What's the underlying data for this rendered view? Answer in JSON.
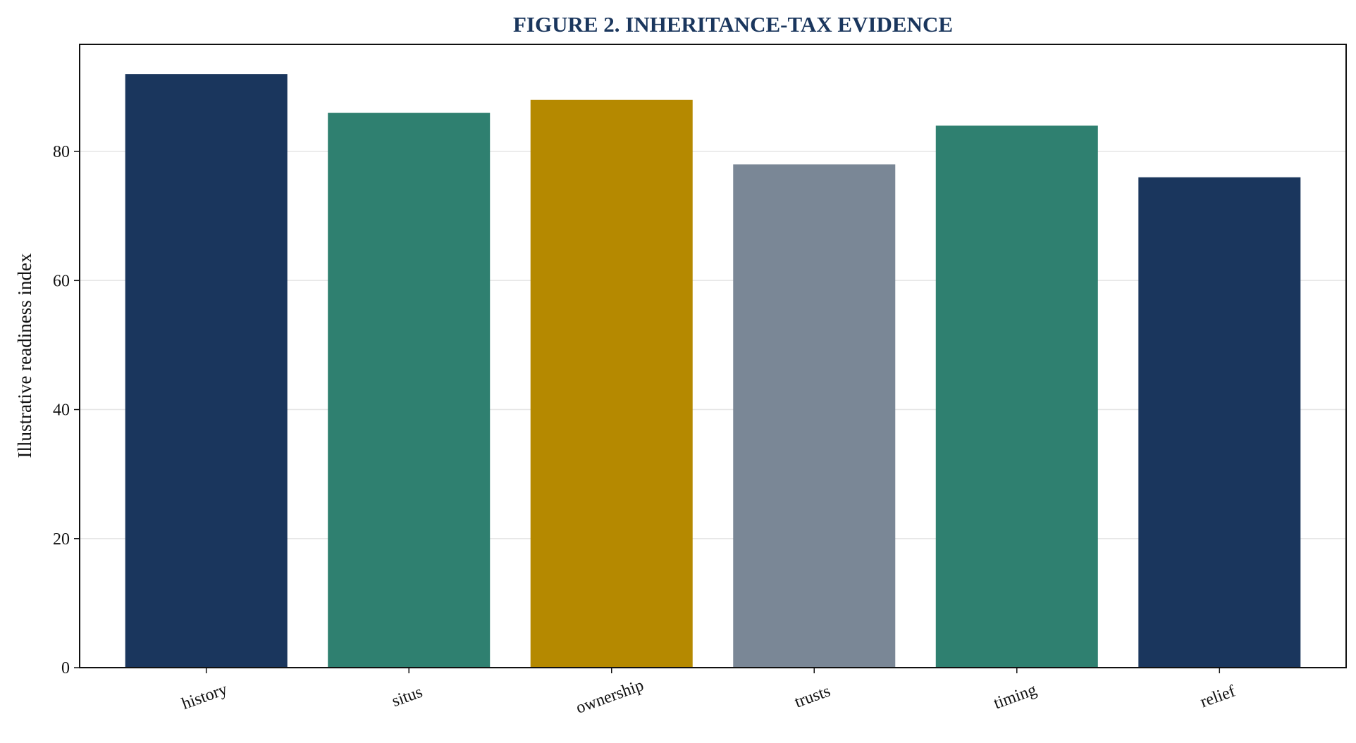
{
  "chart_data": {
    "type": "bar",
    "title": "FIGURE 2. INHERITANCE-TAX EVIDENCE",
    "xlabel": "",
    "ylabel": "Illustrative readiness index",
    "categories": [
      "history",
      "situs",
      "ownership",
      "trusts",
      "timing",
      "relief"
    ],
    "values": [
      92,
      86,
      88,
      78,
      84,
      76
    ],
    "colors": [
      "#1a365d",
      "#2f8070",
      "#b58900",
      "#7a8796",
      "#2f8070",
      "#1a365d"
    ],
    "ylim": [
      0,
      96.6
    ],
    "yticks": [
      0,
      20,
      40,
      60,
      80
    ],
    "grid": "horizontal",
    "legend": "none"
  }
}
